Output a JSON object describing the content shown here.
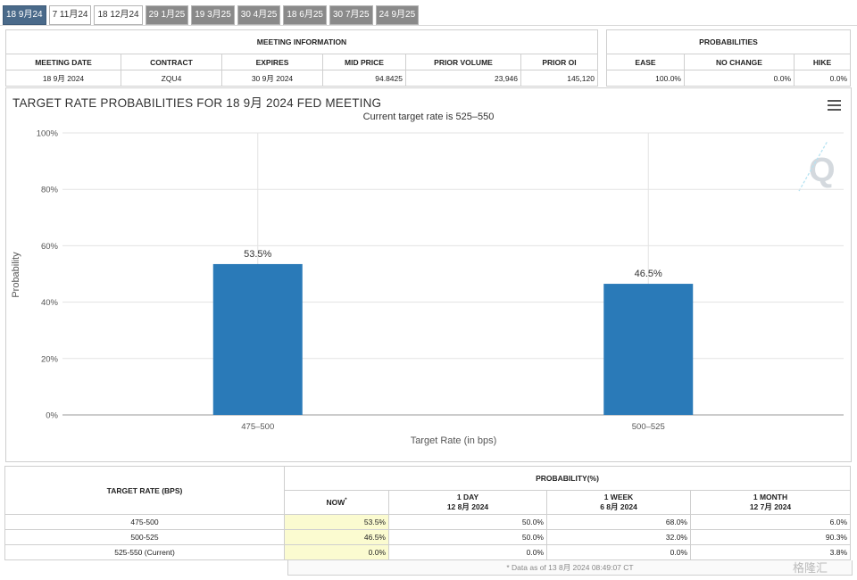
{
  "tabs": [
    "18 9月24",
    "7 11月24",
    "18 12月24",
    "29 1月25",
    "19 3月25",
    "30 4月25",
    "18 6月25",
    "30 7月25",
    "24 9月25"
  ],
  "meeting_info": {
    "title": "MEETING INFORMATION",
    "headers": [
      "MEETING DATE",
      "CONTRACT",
      "EXPIRES",
      "MID PRICE",
      "PRIOR VOLUME",
      "PRIOR OI"
    ],
    "values": [
      "18 9月 2024",
      "ZQU4",
      "30 9月 2024",
      "94.8425",
      "23,946",
      "145,120"
    ]
  },
  "probabilities": {
    "title": "PROBABILITIES",
    "headers": [
      "EASE",
      "NO CHANGE",
      "HIKE"
    ],
    "values": [
      "100.0%",
      "0.0%",
      "0.0%"
    ]
  },
  "chart_title": "TARGET RATE PROBABILITIES FOR 18 9月 2024 FED MEETING",
  "chart_data": {
    "type": "bar",
    "title": "TARGET RATE PROBABILITIES FOR 18 9月 2024 FED MEETING",
    "subtitle": "Current target rate is 525–550",
    "categories": [
      "475–500",
      "500–525"
    ],
    "values": [
      53.5,
      46.5
    ],
    "data_labels": [
      "53.5%",
      "46.5%"
    ],
    "xlabel": "Target Rate (in bps)",
    "ylabel": "Probability",
    "ylim": [
      0,
      100
    ],
    "yticks": [
      "0%",
      "20%",
      "40%",
      "60%",
      "80%",
      "100%"
    ],
    "grid": true,
    "color": "#2a7ab8"
  },
  "prob_table": {
    "rate_header": "TARGET RATE (BPS)",
    "prob_header": "PROBABILITY(%)",
    "cols": [
      {
        "l1": "NOW",
        "l2": ""
      },
      {
        "l1": "1 DAY",
        "l2": "12 8月 2024"
      },
      {
        "l1": "1 WEEK",
        "l2": "6 8月 2024"
      },
      {
        "l1": "1 MONTH",
        "l2": "12 7月 2024"
      }
    ],
    "now_marker": "*",
    "rows": [
      {
        "rate": "475-500",
        "vals": [
          "53.5%",
          "50.0%",
          "68.0%",
          "6.0%"
        ]
      },
      {
        "rate": "500-525",
        "vals": [
          "46.5%",
          "50.0%",
          "32.0%",
          "90.3%"
        ]
      },
      {
        "rate": "525-550 (Current)",
        "vals": [
          "0.0%",
          "0.0%",
          "0.0%",
          "3.8%"
        ]
      }
    ],
    "footnote": "* Data as of 13 8月 2024 08:49:07 CT"
  },
  "watermark": "格隆汇"
}
